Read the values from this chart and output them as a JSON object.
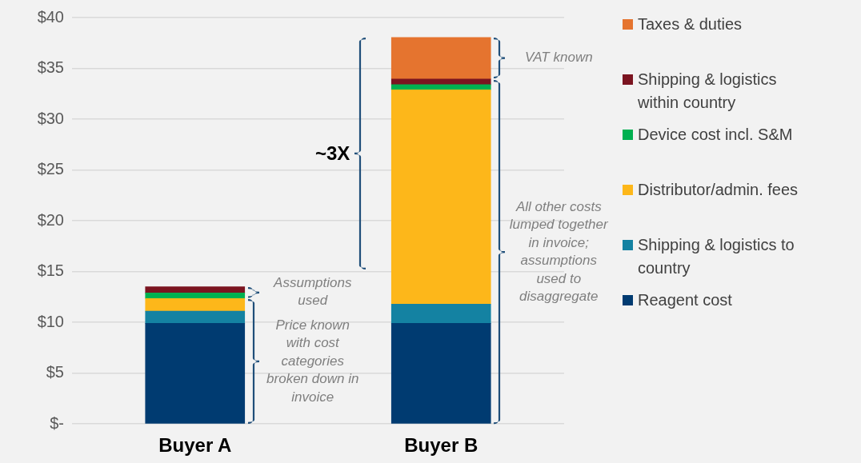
{
  "chart_data": {
    "type": "bar",
    "stacked": true,
    "categories": [
      "Buyer A",
      "Buyer B"
    ],
    "series": [
      {
        "name": "Reagent cost",
        "color": "#003b71",
        "values": [
          9.9,
          9.9
        ]
      },
      {
        "name": "Shipping & logistics to country",
        "color": "#1482a2",
        "values": [
          1.2,
          1.9
        ]
      },
      {
        "name": "Distributor/admin. fees",
        "color": "#fdb71a",
        "values": [
          1.25,
          21.1
        ]
      },
      {
        "name": "Device cost incl. S&M",
        "color": "#00b050",
        "values": [
          0.55,
          0.5
        ]
      },
      {
        "name": "Shipping & logistics within country",
        "color": "#7b1420",
        "values": [
          0.6,
          0.55
        ]
      },
      {
        "name": "Taxes & duties",
        "color": "#e5742f",
        "values": [
          null,
          4.1
        ]
      }
    ],
    "ylim": [
      0,
      40
    ],
    "yticks": [
      {
        "value": 0,
        "label": "$-"
      },
      {
        "value": 5,
        "label": "$5"
      },
      {
        "value": 10,
        "label": "$10"
      },
      {
        "value": 15,
        "label": "$15"
      },
      {
        "value": 20,
        "label": "$20"
      },
      {
        "value": 25,
        "label": "$25"
      },
      {
        "value": 30,
        "label": "$30"
      },
      {
        "value": 35,
        "label": "$35"
      },
      {
        "value": 40,
        "label": "$40"
      }
    ],
    "grid": "y",
    "legend": "right",
    "annotations": [
      "~3X",
      "Assumptions used",
      "Price known with cost categories broken down in invoice",
      "VAT known",
      "All other costs lumped together in invoice; assumptions used to disaggregate"
    ]
  }
}
